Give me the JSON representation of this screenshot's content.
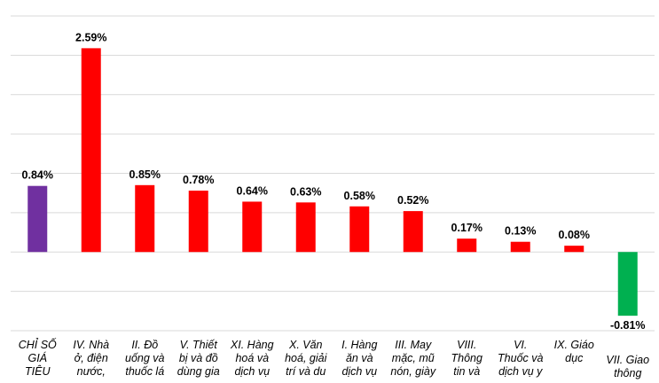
{
  "chart_data": {
    "type": "bar",
    "categories": [
      [
        "CHỈ SỐ",
        "GIÁ",
        "TIÊU"
      ],
      [
        "IV. Nhà",
        "ở, điện",
        "nước,"
      ],
      [
        "II. Đồ",
        "uống và",
        "thuốc lá"
      ],
      [
        "V. Thiết",
        "bị và đồ",
        "dùng gia"
      ],
      [
        "XI. Hàng",
        "hoá và",
        "dịch vụ"
      ],
      [
        "X. Văn",
        "hoá, giải",
        "trí và du"
      ],
      [
        "I. Hàng",
        "ăn và",
        "dịch vụ"
      ],
      [
        "III. May",
        "mặc, mũ",
        "nón, giày"
      ],
      [
        "VIII.",
        "Thông",
        "tin và"
      ],
      [
        "VI.",
        "Thuốc và",
        "dịch vụ y"
      ],
      [
        "IX. Giáo",
        "dục"
      ],
      [
        "VII. Giao",
        "thông"
      ]
    ],
    "values": [
      0.84,
      2.59,
      0.85,
      0.78,
      0.64,
      0.63,
      0.58,
      0.52,
      0.17,
      0.13,
      0.08,
      -0.81
    ],
    "value_labels": [
      "0.84%",
      "2.59%",
      "0.85%",
      "0.78%",
      "0.64%",
      "0.63%",
      "0.58%",
      "0.52%",
      "0.17%",
      "0.13%",
      "0.08%",
      "-0.81%"
    ],
    "colors": [
      "#7030a0",
      "#ff0000",
      "#ff0000",
      "#ff0000",
      "#ff0000",
      "#ff0000",
      "#ff0000",
      "#ff0000",
      "#ff0000",
      "#ff0000",
      "#ff0000",
      "#00b050"
    ],
    "ylim": [
      -1.0,
      3.0
    ],
    "grid": true,
    "title": "",
    "xlabel": "",
    "ylabel": ""
  }
}
